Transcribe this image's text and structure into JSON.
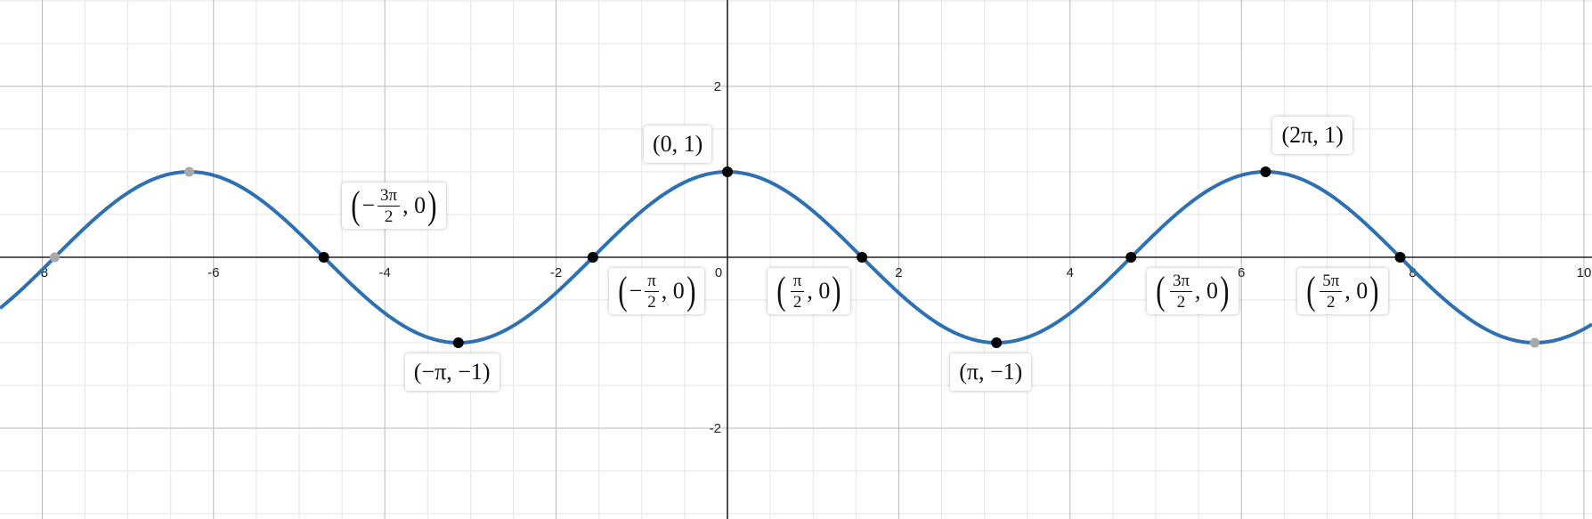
{
  "chart_data": {
    "type": "line",
    "function": "cos(x)",
    "xlim": [
      -8.5,
      10.1
    ],
    "ylim": [
      -3.0,
      3.0
    ],
    "grid": true,
    "x_ticks": [
      "-8",
      "-6",
      "-4",
      "-2",
      "0",
      "2",
      "4",
      "6",
      "8",
      "10"
    ],
    "x_tick_values": [
      -8,
      -6,
      -4,
      -2,
      0,
      2,
      4,
      6,
      8,
      10
    ],
    "y_ticks": [
      "2",
      "-2"
    ],
    "y_tick_values": [
      2,
      -2
    ],
    "series": [
      {
        "color": "#2d70b3"
      }
    ],
    "marked_points": [
      {
        "x": -4.712,
        "y": 0,
        "label": [
          "-",
          "3π/2",
          "0"
        ]
      },
      {
        "x": -3.1416,
        "y": -1,
        "label": "(−π, −1)"
      },
      {
        "x": -1.5708,
        "y": 0,
        "label": [
          "-",
          "π/2",
          "0"
        ]
      },
      {
        "x": 0,
        "y": 1,
        "label": "(0, 1)"
      },
      {
        "x": 1.5708,
        "y": 0,
        "label": [
          "",
          "π/2",
          "0"
        ]
      },
      {
        "x": 3.1416,
        "y": -1,
        "label": "(π, −1)"
      },
      {
        "x": 4.712,
        "y": 0,
        "label": [
          "",
          "3π/2",
          "0"
        ]
      },
      {
        "x": 6.2832,
        "y": 1,
        "label": "(2π, 1)"
      },
      {
        "x": 7.854,
        "y": 0,
        "label": [
          "",
          "5π/2",
          "0"
        ]
      }
    ],
    "faded_points": [
      {
        "x": -7.854,
        "y": 0
      },
      {
        "x": -6.2832,
        "y": 1
      },
      {
        "x": 9.4248,
        "y": -1
      }
    ],
    "colors": {
      "curve": "#2d70b3",
      "point": "#000000",
      "faded_point": "#a9a9a9",
      "axis": "#222222",
      "major_grid": "#b8b8b8",
      "minor_grid": "#e6e6e6"
    }
  }
}
